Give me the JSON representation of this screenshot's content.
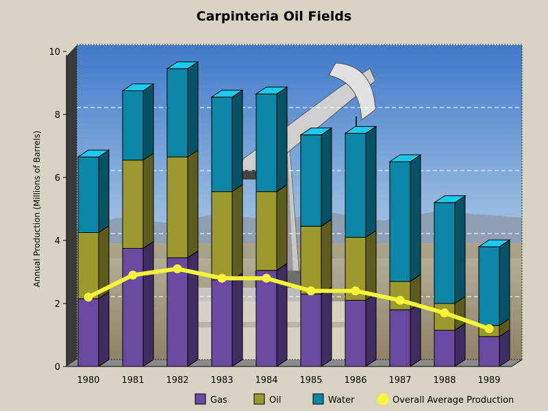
{
  "chart_data": {
    "type": "bar",
    "stacked": true,
    "title": "Carpinteria Oil Fields",
    "ylabel": "Annual Production (Millions of Barrels)",
    "xlabel": "",
    "ylim": [
      0,
      10
    ],
    "yticks": [
      0,
      2,
      4,
      6,
      8,
      10
    ],
    "grid": true,
    "legend_position": "bottom",
    "categories": [
      "1980",
      "1981",
      "1982",
      "1983",
      "1984",
      "1985",
      "1986",
      "1987",
      "1988",
      "1989"
    ],
    "series": [
      {
        "name": "Gas",
        "type": "bar",
        "color": "#6a4aa0",
        "values": [
          2.15,
          3.75,
          3.45,
          2.75,
          3.05,
          2.3,
          2.1,
          1.8,
          1.15,
          0.95
        ]
      },
      {
        "name": "Oil",
        "type": "bar",
        "color": "#9c9a2e",
        "values": [
          2.1,
          2.8,
          3.2,
          2.8,
          2.5,
          2.15,
          2.0,
          0.9,
          0.85,
          0.35
        ]
      },
      {
        "name": "Water",
        "type": "bar",
        "color": "#0a87a6",
        "values": [
          2.4,
          2.2,
          2.8,
          3.0,
          3.1,
          2.9,
          3.3,
          3.8,
          3.2,
          2.5
        ]
      },
      {
        "name": "Overall Average Production",
        "type": "line",
        "color": "#f6f53a",
        "values": [
          2.2,
          2.9,
          3.1,
          2.8,
          2.8,
          2.4,
          2.4,
          2.1,
          1.7,
          1.2
        ]
      }
    ]
  }
}
